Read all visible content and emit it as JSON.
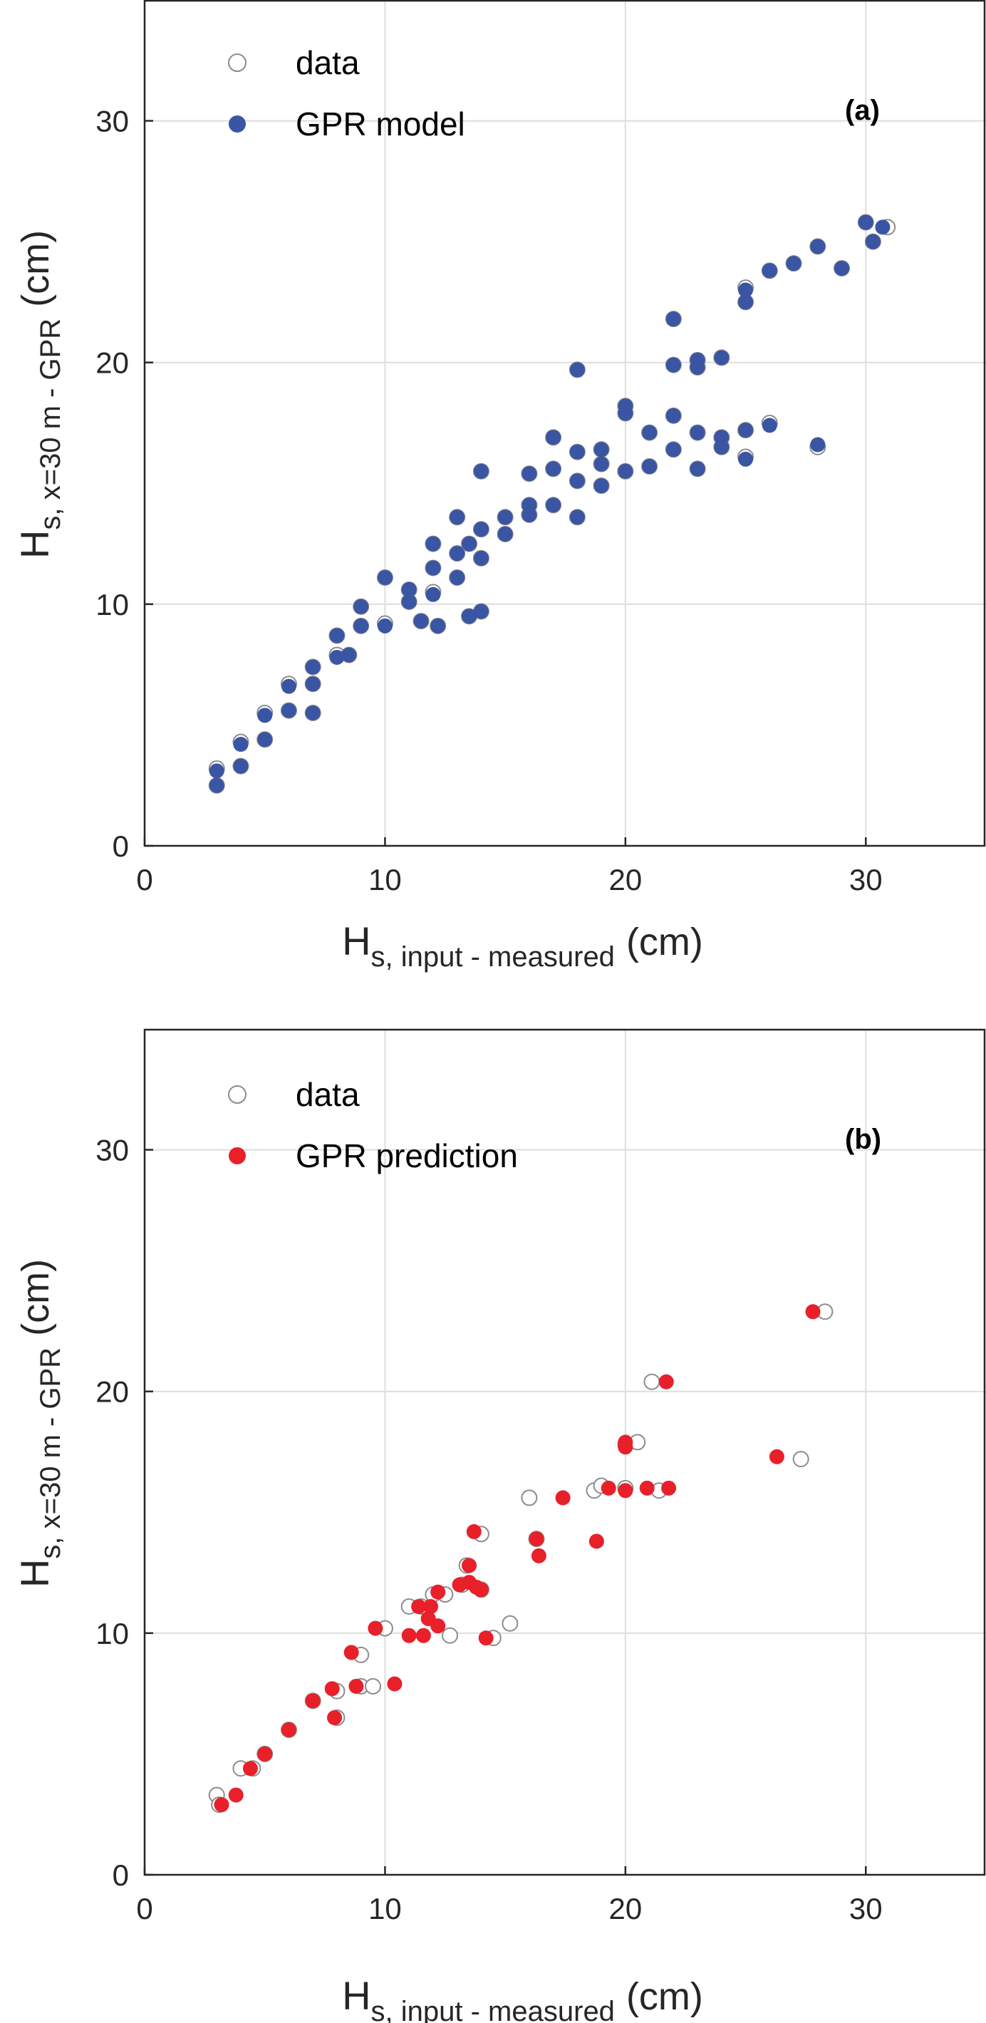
{
  "chart_data": [
    {
      "type": "scatter",
      "panel_tag": "(a)",
      "xlabel_main": "H",
      "xlabel_sub": "s, input - measured",
      "xlabel_unit": "(cm)",
      "ylabel_main": "H",
      "ylabel_sub": "s, x=30 m - GPR",
      "ylabel_unit": "(cm)",
      "xlim": [
        0,
        35
      ],
      "ylim": [
        0,
        35
      ],
      "xticks": [
        0,
        10,
        20,
        30
      ],
      "yticks": [
        0,
        10,
        20,
        30
      ],
      "grid": true,
      "legend_position": "top-left",
      "series": [
        {
          "name": "data",
          "marker": "open-circle",
          "color": "#8c8c8c",
          "points": [
            [
              3,
              3.2
            ],
            [
              3,
              2.5
            ],
            [
              4,
              4.3
            ],
            [
              4,
              3.3
            ],
            [
              5,
              5.5
            ],
            [
              5,
              4.4
            ],
            [
              6,
              6.7
            ],
            [
              6,
              5.6
            ],
            [
              7,
              7.4
            ],
            [
              7,
              6.7
            ],
            [
              7,
              5.5
            ],
            [
              8,
              8.7
            ],
            [
              8,
              7.9
            ],
            [
              8.5,
              7.9
            ],
            [
              9,
              9.9
            ],
            [
              9,
              9.1
            ],
            [
              10,
              11.1
            ],
            [
              10,
              9.2
            ],
            [
              11,
              10.6
            ],
            [
              11,
              10.1
            ],
            [
              11.5,
              9.3
            ],
            [
              12,
              12.5
            ],
            [
              12,
              11.5
            ],
            [
              12,
              10.5
            ],
            [
              12.2,
              9.1
            ],
            [
              13,
              13.6
            ],
            [
              13,
              12.1
            ],
            [
              13,
              11.1
            ],
            [
              13.5,
              12.5
            ],
            [
              14,
              13.1
            ],
            [
              14,
              11.9
            ],
            [
              14,
              9.7
            ],
            [
              14,
              15.5
            ],
            [
              13.5,
              9.5
            ],
            [
              15,
              13.6
            ],
            [
              15,
              12.9
            ],
            [
              16,
              15.4
            ],
            [
              16,
              14.1
            ],
            [
              16,
              13.7
            ],
            [
              17,
              16.9
            ],
            [
              17,
              15.6
            ],
            [
              17,
              14.1
            ],
            [
              18,
              19.7
            ],
            [
              18,
              16.3
            ],
            [
              18,
              15.1
            ],
            [
              18,
              13.6
            ],
            [
              19,
              16.4
            ],
            [
              19,
              15.8
            ],
            [
              19,
              14.9
            ],
            [
              20,
              18.2
            ],
            [
              20,
              17.9
            ],
            [
              20,
              15.5
            ],
            [
              21,
              17.1
            ],
            [
              21,
              15.7
            ],
            [
              22,
              21.8
            ],
            [
              22,
              19.9
            ],
            [
              22,
              17.8
            ],
            [
              22,
              16.4
            ],
            [
              23,
              20.1
            ],
            [
              23,
              19.8
            ],
            [
              23,
              17.1
            ],
            [
              23,
              15.6
            ],
            [
              24,
              20.2
            ],
            [
              24,
              16.9
            ],
            [
              24,
              16.5
            ],
            [
              25,
              23.1
            ],
            [
              25,
              22.5
            ],
            [
              25,
              17.2
            ],
            [
              25,
              16.1
            ],
            [
              26,
              23.8
            ],
            [
              26,
              17.5
            ],
            [
              27,
              24.1
            ],
            [
              28,
              24.8
            ],
            [
              28,
              16.5
            ],
            [
              29,
              23.9
            ],
            [
              30,
              25.8
            ],
            [
              30.3,
              25.0
            ],
            [
              30.9,
              25.6
            ]
          ]
        },
        {
          "name": "GPR model",
          "marker": "filled-circle",
          "color": "#3a55a4",
          "points": [
            [
              3,
              3.1
            ],
            [
              3,
              2.5
            ],
            [
              4,
              4.2
            ],
            [
              4,
              3.3
            ],
            [
              5,
              5.4
            ],
            [
              5,
              4.4
            ],
            [
              6,
              6.6
            ],
            [
              6,
              5.6
            ],
            [
              7,
              7.4
            ],
            [
              7,
              6.7
            ],
            [
              7,
              5.5
            ],
            [
              8,
              8.7
            ],
            [
              8,
              7.8
            ],
            [
              8.5,
              7.9
            ],
            [
              9,
              9.9
            ],
            [
              9,
              9.1
            ],
            [
              10,
              11.1
            ],
            [
              10,
              9.1
            ],
            [
              11,
              10.6
            ],
            [
              11,
              10.1
            ],
            [
              11.5,
              9.3
            ],
            [
              12,
              12.5
            ],
            [
              12,
              11.5
            ],
            [
              12,
              10.4
            ],
            [
              12.2,
              9.1
            ],
            [
              13,
              13.6
            ],
            [
              13,
              12.1
            ],
            [
              13,
              11.1
            ],
            [
              13.5,
              12.5
            ],
            [
              14,
              13.1
            ],
            [
              14,
              11.9
            ],
            [
              14,
              9.7
            ],
            [
              14,
              15.5
            ],
            [
              13.5,
              9.5
            ],
            [
              15,
              13.6
            ],
            [
              15,
              12.9
            ],
            [
              16,
              15.4
            ],
            [
              16,
              14.1
            ],
            [
              16,
              13.7
            ],
            [
              17,
              16.9
            ],
            [
              17,
              15.6
            ],
            [
              17,
              14.1
            ],
            [
              18,
              19.7
            ],
            [
              18,
              16.3
            ],
            [
              18,
              15.1
            ],
            [
              18,
              13.6
            ],
            [
              19,
              16.4
            ],
            [
              19,
              15.8
            ],
            [
              19,
              14.9
            ],
            [
              20,
              18.2
            ],
            [
              20,
              17.9
            ],
            [
              20,
              15.5
            ],
            [
              21,
              17.1
            ],
            [
              21,
              15.7
            ],
            [
              22,
              21.8
            ],
            [
              22,
              19.9
            ],
            [
              22,
              17.8
            ],
            [
              22,
              16.4
            ],
            [
              23,
              20.1
            ],
            [
              23,
              19.8
            ],
            [
              23,
              17.1
            ],
            [
              23,
              15.6
            ],
            [
              24,
              20.2
            ],
            [
              24,
              16.9
            ],
            [
              24,
              16.5
            ],
            [
              25,
              23.0
            ],
            [
              25,
              22.5
            ],
            [
              25,
              17.2
            ],
            [
              25,
              16.0
            ],
            [
              26,
              23.8
            ],
            [
              26,
              17.4
            ],
            [
              27,
              24.1
            ],
            [
              28,
              24.8
            ],
            [
              28,
              16.6
            ],
            [
              29,
              23.9
            ],
            [
              30,
              25.8
            ],
            [
              30.3,
              25.0
            ],
            [
              30.7,
              25.6
            ]
          ]
        }
      ],
      "legend": [
        "data",
        "GPR model"
      ]
    },
    {
      "type": "scatter",
      "panel_tag": "(b)",
      "xlabel_main": "H",
      "xlabel_sub": "s, input - measured",
      "xlabel_unit": "(cm)",
      "ylabel_main": "H",
      "ylabel_sub": "s, x=30 m - GPR",
      "ylabel_unit": "(cm)",
      "xlim": [
        0,
        35
      ],
      "ylim": [
        0,
        35
      ],
      "xticks": [
        0,
        10,
        20,
        30
      ],
      "yticks": [
        0,
        10,
        20,
        30
      ],
      "grid": true,
      "legend_position": "top-left",
      "series": [
        {
          "name": "data",
          "marker": "open-circle",
          "color": "#8c8c8c",
          "points": [
            [
              3,
              3.3
            ],
            [
              3.1,
              2.9
            ],
            [
              4,
              4.4
            ],
            [
              4.5,
              4.4
            ],
            [
              5,
              5
            ],
            [
              6,
              6
            ],
            [
              7,
              7.2
            ],
            [
              8,
              7.6
            ],
            [
              8,
              6.5
            ],
            [
              9,
              9.1
            ],
            [
              9,
              7.8
            ],
            [
              9.5,
              7.8
            ],
            [
              10,
              10.2
            ],
            [
              11,
              11.1
            ],
            [
              11.5,
              11.1
            ],
            [
              12,
              11.6
            ],
            [
              12.5,
              11.6
            ],
            [
              12.7,
              9.9
            ],
            [
              13.2,
              12.0
            ],
            [
              13.4,
              12.8
            ],
            [
              14,
              14.1
            ],
            [
              14,
              11.8
            ],
            [
              14.5,
              9.8
            ],
            [
              15.2,
              10.4
            ],
            [
              16,
              15.6
            ],
            [
              16.3,
              13.9
            ],
            [
              18.7,
              15.9
            ],
            [
              19,
              16.1
            ],
            [
              20,
              17.8
            ],
            [
              20.5,
              17.9
            ],
            [
              20,
              16
            ],
            [
              21.1,
              20.4
            ],
            [
              21.4,
              15.9
            ],
            [
              27.3,
              17.2
            ],
            [
              28.3,
              23.3
            ]
          ]
        },
        {
          "name": "GPR prediction",
          "marker": "filled-circle",
          "color": "#e8202a",
          "points": [
            [
              3.2,
              2.9
            ],
            [
              3.8,
              3.3
            ],
            [
              4.4,
              4.4
            ],
            [
              5,
              5
            ],
            [
              6,
              6
            ],
            [
              7,
              7.2
            ],
            [
              7.8,
              7.7
            ],
            [
              7.9,
              6.5
            ],
            [
              8.6,
              9.2
            ],
            [
              8.8,
              7.8
            ],
            [
              9.6,
              10.2
            ],
            [
              10.4,
              7.9
            ],
            [
              11,
              9.9
            ],
            [
              11.4,
              11.1
            ],
            [
              11.6,
              9.9
            ],
            [
              11.8,
              10.6
            ],
            [
              11.9,
              11.1
            ],
            [
              12.2,
              11.7
            ],
            [
              12.2,
              10.3
            ],
            [
              13.1,
              12
            ],
            [
              13.5,
              12.8
            ],
            [
              13.5,
              12.1
            ],
            [
              13.7,
              14.2
            ],
            [
              13.8,
              11.9
            ],
            [
              14,
              11.8
            ],
            [
              14.2,
              9.8
            ],
            [
              16.3,
              13.9
            ],
            [
              16.4,
              13.2
            ],
            [
              17.4,
              15.6
            ],
            [
              18.8,
              13.8
            ],
            [
              19.3,
              16
            ],
            [
              20,
              15.9
            ],
            [
              20,
              17.7
            ],
            [
              20,
              17.9
            ],
            [
              20.9,
              16
            ],
            [
              21.7,
              20.4
            ],
            [
              21.8,
              16
            ],
            [
              26.3,
              17.3
            ],
            [
              27.8,
              23.3
            ]
          ]
        }
      ],
      "legend": [
        "data",
        "GPR prediction"
      ]
    }
  ]
}
